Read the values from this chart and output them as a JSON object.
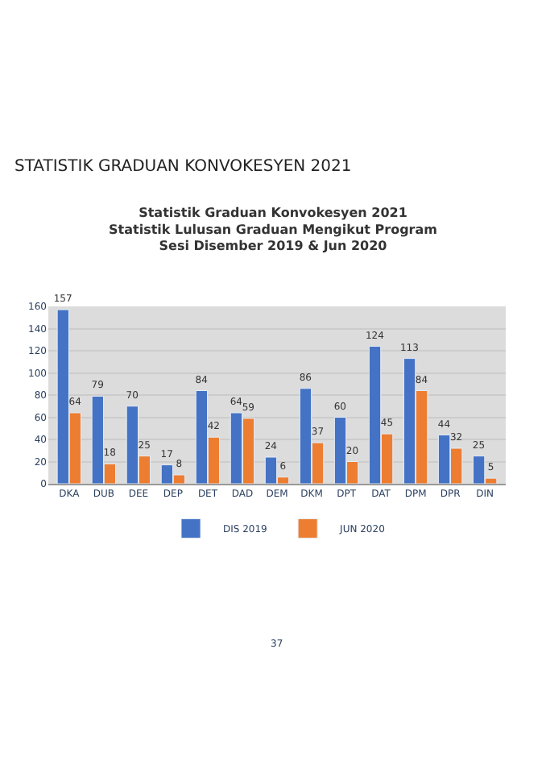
{
  "chart_data": {
    "type": "bar",
    "title": "Statistik Graduan Konvokesyen 2021\nStatistik Lulusan Graduan Mengikut Program\nSesi Disember 2019 & Jun 2020",
    "categories": [
      "DKA",
      "DUB",
      "DEE",
      "DEP",
      "DET",
      "DAD",
      "DEM",
      "DKM",
      "DPT",
      "DAT",
      "DPM",
      "DPR",
      "DIN"
    ],
    "series": [
      {
        "name": "DIS 2019",
        "color": "#4472c4",
        "values": [
          157,
          79,
          70,
          17,
          84,
          64,
          24,
          86,
          60,
          124,
          113,
          44,
          25
        ]
      },
      {
        "name": "JUN 2020",
        "color": "#ed7d31",
        "values": [
          64,
          18,
          25,
          8,
          42,
          59,
          6,
          37,
          20,
          45,
          84,
          32,
          5
        ]
      }
    ],
    "ylim": [
      0,
      160
    ],
    "yticks": [
      0,
      20,
      40,
      60,
      80,
      100,
      120,
      140,
      160
    ],
    "grid": "y",
    "legend": "bottom",
    "data_labels": true,
    "annotations": [
      "STATISTIK GRADUAN KONVOKESYEN 2021",
      "37"
    ]
  }
}
